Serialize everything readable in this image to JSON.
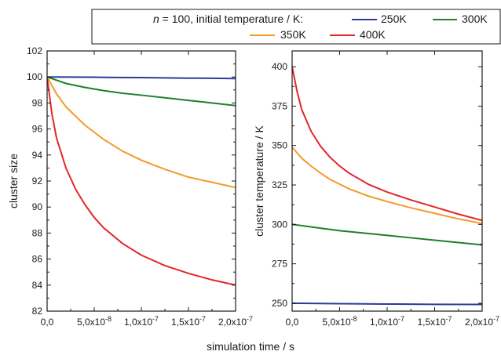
{
  "legend": {
    "prefix_var": "n",
    "prefix_text": " = 100, initial temperature / K:",
    "entries": [
      {
        "label": "250K",
        "color": "#2b3a9a"
      },
      {
        "label": "300K",
        "color": "#1e7f2c"
      },
      {
        "label": "350K",
        "color": "#f39a2a"
      },
      {
        "label": "400K",
        "color": "#e3262a"
      }
    ]
  },
  "shared_xlabel": "simulation time / s",
  "chart_data": [
    {
      "type": "line",
      "ylabel": "cluster size",
      "xlabel": "simulation time / s",
      "xlim": [
        0,
        2e-07
      ],
      "ylim": [
        82,
        102
      ],
      "xticks": [
        0,
        5e-08,
        1e-07,
        1.5e-07,
        2e-07
      ],
      "xtick_mantissa": [
        "0,0",
        "5,0x10",
        "1,0x10",
        "1,5x10",
        "2,0x10"
      ],
      "xtick_exponent": [
        "",
        "-8",
        "-7",
        "-7",
        "-7"
      ],
      "yticks": [
        82,
        84,
        86,
        88,
        90,
        92,
        94,
        96,
        98,
        100,
        102
      ],
      "ytick_labels": [
        "82",
        "84",
        "86",
        "88",
        "90",
        "92",
        "94",
        "96",
        "98",
        "100",
        "102"
      ],
      "series": [
        {
          "name": "250K",
          "color": "#2b3a9a",
          "x": [
            0,
            2.5e-08,
            5e-08,
            7.5e-08,
            1e-07,
            1.25e-07,
            1.5e-07,
            1.75e-07,
            2e-07
          ],
          "y": [
            100,
            99.99,
            99.98,
            99.96,
            99.95,
            99.93,
            99.91,
            99.9,
            99.88
          ]
        },
        {
          "name": "300K",
          "color": "#1e7f2c",
          "x": [
            0,
            1e-08,
            2e-08,
            4e-08,
            6e-08,
            8e-08,
            1e-07,
            1.25e-07,
            1.5e-07,
            1.75e-07,
            2e-07
          ],
          "y": [
            100,
            99.75,
            99.5,
            99.2,
            98.95,
            98.75,
            98.6,
            98.4,
            98.2,
            98.0,
            97.8
          ]
        },
        {
          "name": "350K",
          "color": "#f39a2a",
          "x": [
            0,
            1e-08,
            2e-08,
            4e-08,
            6e-08,
            8e-08,
            1e-07,
            1.25e-07,
            1.5e-07,
            1.75e-07,
            2e-07
          ],
          "y": [
            100,
            98.7,
            97.7,
            96.3,
            95.2,
            94.3,
            93.6,
            92.9,
            92.3,
            91.9,
            91.5
          ]
        },
        {
          "name": "400K",
          "color": "#e3262a",
          "x": [
            0,
            5e-09,
            1e-08,
            2e-08,
            3e-08,
            4e-08,
            5e-08,
            6e-08,
            8e-08,
            1e-07,
            1.25e-07,
            1.5e-07,
            1.75e-07,
            2e-07
          ],
          "y": [
            100,
            97.2,
            95.3,
            93.0,
            91.4,
            90.2,
            89.2,
            88.4,
            87.2,
            86.3,
            85.5,
            84.9,
            84.4,
            84.0
          ]
        }
      ]
    },
    {
      "type": "line",
      "ylabel": "cluster temperature / K",
      "xlabel": "simulation time / s",
      "xlim": [
        0,
        2e-07
      ],
      "ylim": [
        245,
        410
      ],
      "xticks": [
        0,
        5e-08,
        1e-07,
        1.5e-07,
        2e-07
      ],
      "xtick_mantissa": [
        "0,0",
        "5,0x10",
        "1,0x10",
        "1,5x10",
        "2,0x10"
      ],
      "xtick_exponent": [
        "",
        "-8",
        "-7",
        "-7",
        "-7"
      ],
      "yticks": [
        250,
        275,
        300,
        325,
        350,
        375,
        400
      ],
      "ytick_labels": [
        "250",
        "275",
        "300",
        "325",
        "350",
        "375",
        "400"
      ],
      "series": [
        {
          "name": "250K",
          "color": "#2b3a9a",
          "x": [
            0,
            5e-08,
            1e-07,
            1.5e-07,
            2e-07
          ],
          "y": [
            250,
            249.7,
            249.5,
            249.3,
            249.2
          ]
        },
        {
          "name": "300K",
          "color": "#1e7f2c",
          "x": [
            0,
            2.5e-08,
            5e-08,
            7.5e-08,
            1e-07,
            1.25e-07,
            1.5e-07,
            1.75e-07,
            2e-07
          ],
          "y": [
            300,
            298,
            296,
            294.5,
            293,
            291.5,
            290,
            288.5,
            287
          ]
        },
        {
          "name": "350K",
          "color": "#f39a2a",
          "x": [
            0,
            1e-08,
            2e-08,
            3e-08,
            4e-08,
            5e-08,
            6e-08,
            8e-08,
            1e-07,
            1.25e-07,
            1.5e-07,
            1.75e-07,
            2e-07
          ],
          "y": [
            349,
            342,
            337,
            332.5,
            328.5,
            325.5,
            322.5,
            318,
            314.5,
            310.5,
            307,
            303.5,
            300.5
          ]
        },
        {
          "name": "400K",
          "color": "#e3262a",
          "x": [
            0,
            5e-09,
            1e-08,
            2e-08,
            3e-08,
            4e-08,
            5e-08,
            6e-08,
            8e-08,
            1e-07,
            1.25e-07,
            1.5e-07,
            1.75e-07,
            2e-07
          ],
          "y": [
            400,
            385,
            373,
            359,
            349.5,
            342.5,
            337,
            332.5,
            325.5,
            320.5,
            315.5,
            311,
            306.5,
            302.5
          ]
        }
      ]
    }
  ]
}
